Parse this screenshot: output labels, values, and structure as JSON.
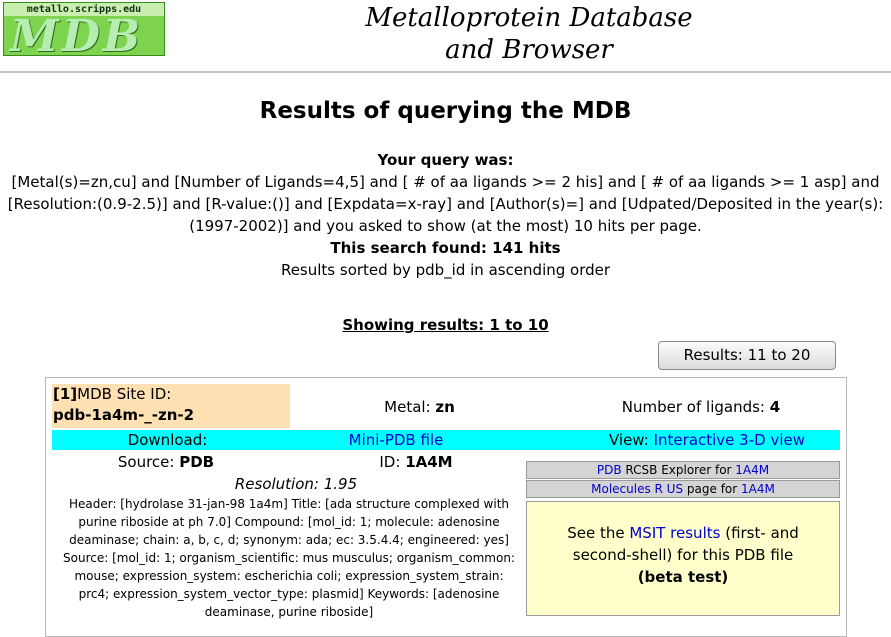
{
  "header": {
    "logo_url": "metallo.scripps.edu",
    "logo_text": "MDB",
    "site_title_line1": "Metalloprotein Database",
    "site_title_line2": "and Browser"
  },
  "page_title": "Results of querying the MDB",
  "query": {
    "label": "Your query was:",
    "line1": "[Metal(s)=zn,cu] and [Number of Ligands=4,5] and [ # of aa ligands >= 2 his] and [ # of aa ligands >= 1 asp] and",
    "line2": "[Resolution:(0.9-2.5)] and [R-value:()] and [Expdata=x-ray] and [Author(s)=] and [Udpated/Deposited in the year(s):",
    "line3": "(1997-2002)] and you asked to show (at the most) 10 hits per page.",
    "found": "This search found: 141 hits",
    "sorted": "Results sorted by pdb_id in ascending order"
  },
  "showing": "Showing results: 1 to 10",
  "next_button": "Results: 11 to 20",
  "result": {
    "index": "[1]",
    "site_id_label": "MDB Site ID:",
    "site_id": "pdb-1a4m-_-zn-2",
    "metal_label": "Metal:",
    "metal": "zn",
    "ligands_label": "Number of ligands:",
    "ligands": "4",
    "download_label": "Download:",
    "mini_pdb": "Mini-PDB file",
    "view_label": "View:",
    "view_link": "Interactive 3-D view",
    "source_label": "Source:",
    "source": "PDB",
    "id_label": "ID:",
    "pdb_id": "1A4M",
    "resolution": "Resolution: 1.95",
    "header_lines": [
      "Header: [hydrolase 31-jan-98 1a4m] Title: [ada structure complexed with",
      "purine riboside at ph 7.0] Compound: [mol_id: 1; molecule: adenosine",
      "deaminase; chain: a, b, c, d; synonym: ada; ec: 3.5.4.4; engineered: yes]",
      "Source: [mol_id: 1; organism_scientific: mus musculus; organism_common:",
      "mouse; expression_system: escherichia coli; expression_system_strain:",
      "prc4; expression_system_vector_type: plasmid] Keywords: [adenosine",
      "deaminase, purine riboside]"
    ],
    "rcsb": {
      "pdb_link": "PDB",
      "text": "RCSB Explorer for",
      "id_link": "1A4M"
    },
    "mrus": {
      "link": "Molecules R US",
      "text": "page for",
      "id_link": "1A4M"
    },
    "msit": {
      "before": "See the",
      "link": "MSIT results",
      "after": "(first- and",
      "line2": "second-shell) for this PDB file",
      "beta": "(beta test)"
    }
  }
}
